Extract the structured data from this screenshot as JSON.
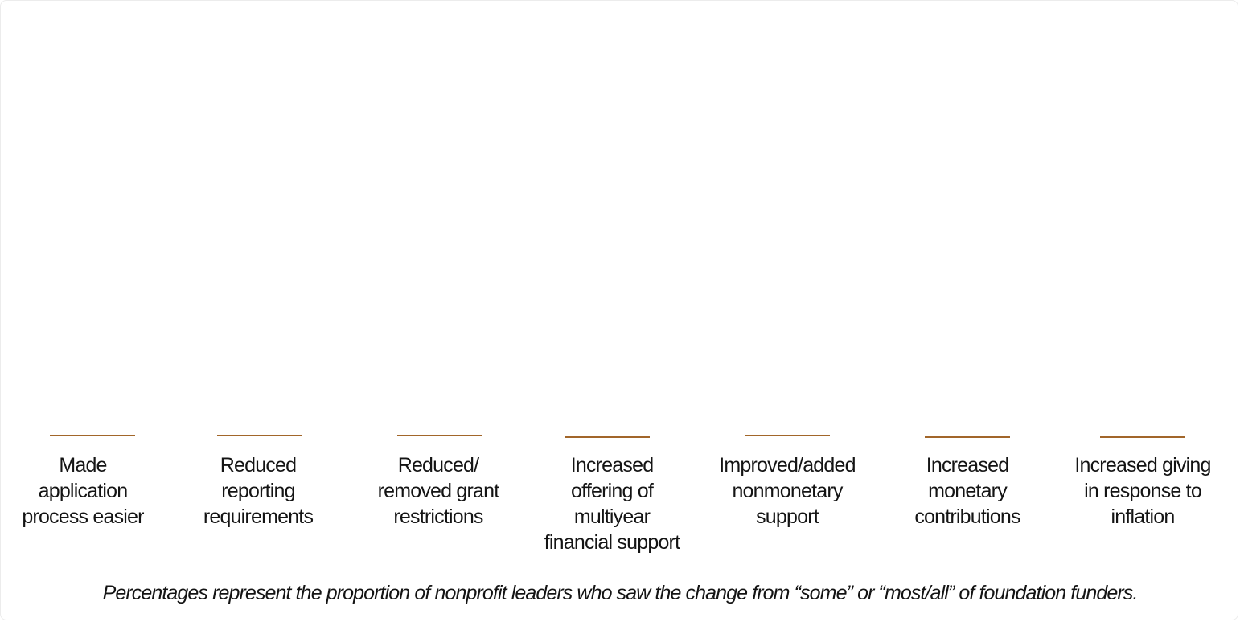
{
  "chart_data": {
    "type": "bar",
    "categories": [
      "Made\napplication\nprocess easier",
      "Reduced\nreporting\nrequirements",
      "Reduced/\nremoved grant\nrestrictions",
      "Increased\noffering of\nmultiyear\nfinancial support",
      "Improved/added\nnonmonetary\nsupport",
      "Increased\nmonetary\ncontributions",
      "Increased giving\nin response to\ninflation"
    ],
    "values": [
      0,
      0,
      0,
      0,
      0,
      0,
      0
    ],
    "title": "",
    "xlabel": "",
    "ylabel": "",
    "grid": false,
    "legend": "none",
    "colors": {
      "bar": "#a2662a"
    }
  },
  "footnote": "Percentages represent the proportion of nonprofit leaders who saw the change from “some” or “most/all” of foundation funders."
}
